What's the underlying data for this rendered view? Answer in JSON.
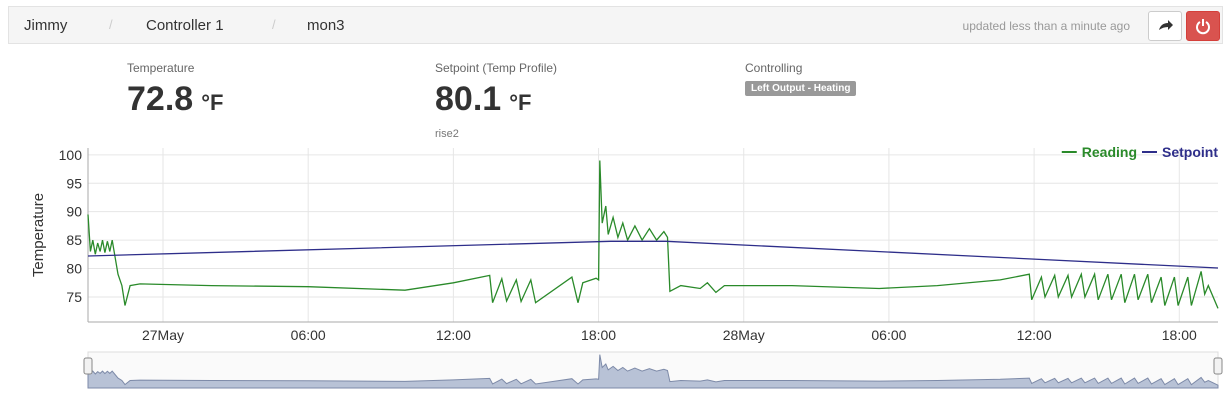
{
  "header": {
    "crumbs": [
      "Jimmy",
      "Controller 1",
      "mon3"
    ],
    "status": "updated less than a minute ago"
  },
  "stats": [
    {
      "label": "Temperature",
      "value": "72.8",
      "unit": "°F"
    },
    {
      "label": "Setpoint (Temp Profile)",
      "value": "80.1",
      "unit": "°F",
      "note": "rise2"
    },
    {
      "label": "Controlling",
      "badge": "Left Output - Heating"
    }
  ],
  "chart_data": {
    "type": "line",
    "ylabel": "Temperature",
    "xlim": [
      -3.1,
      43.6
    ],
    "ylim": [
      70.6,
      101.2
    ],
    "xticks": [
      {
        "value": 0,
        "label": "27May"
      },
      {
        "value": 6,
        "label": "06:00"
      },
      {
        "value": 12,
        "label": "12:00"
      },
      {
        "value": 18,
        "label": "18:00"
      },
      {
        "value": 24,
        "label": "28May"
      },
      {
        "value": 30,
        "label": "06:00"
      },
      {
        "value": 36,
        "label": "12:00"
      },
      {
        "value": 42,
        "label": "18:00"
      }
    ],
    "yticks": [
      75,
      80,
      85,
      90,
      95,
      100
    ],
    "grid": true,
    "legend": "top-right",
    "series": [
      {
        "name": "Reading",
        "color": "#2a8a2a",
        "x": [
          -3.1,
          -3.0,
          -2.9,
          -2.8,
          -2.7,
          -2.6,
          -2.5,
          -2.4,
          -2.3,
          -2.2,
          -2.1,
          -2.0,
          -1.86,
          -1.7,
          -1.57,
          -1.36,
          -0.95,
          2,
          6,
          10,
          12,
          13.5,
          13.62,
          14.0,
          14.2,
          14.6,
          14.8,
          15.2,
          15.4,
          16.9,
          17.15,
          17.35,
          17.9,
          18.0,
          18.05,
          18.15,
          18.3,
          18.4,
          18.6,
          18.8,
          19.0,
          19.2,
          19.5,
          19.8,
          20.1,
          20.4,
          20.7,
          20.85,
          20.95,
          21.4,
          22.2,
          22.5,
          22.85,
          23.2,
          26,
          29.6,
          32,
          34.6,
          35.8,
          35.9,
          36.3,
          36.45,
          36.85,
          37.0,
          37.4,
          37.55,
          37.95,
          38.1,
          38.5,
          38.65,
          39.05,
          39.2,
          39.6,
          39.75,
          40.15,
          40.3,
          40.7,
          40.85,
          41.25,
          41.4,
          41.8,
          41.95,
          42.35,
          42.5,
          42.9,
          43.05,
          43.2,
          43.6
        ],
        "values": [
          89.5,
          83,
          85,
          82.5,
          84.5,
          83,
          85,
          82.8,
          84.8,
          83,
          85,
          82.5,
          79,
          77,
          73.5,
          77,
          77.3,
          77,
          76.8,
          76.2,
          77.5,
          78.8,
          74,
          78.2,
          74.3,
          78,
          74.2,
          78,
          74,
          78.5,
          74,
          77.5,
          78.3,
          78,
          99,
          88,
          91,
          86,
          89,
          85.5,
          88,
          85,
          87.5,
          85,
          87,
          85,
          86.5,
          85.5,
          76,
          77,
          76.5,
          77.5,
          75.8,
          77,
          77,
          76.5,
          77,
          78,
          79,
          74.5,
          78.5,
          75,
          78.8,
          75,
          78.8,
          75,
          79,
          75,
          79,
          74.5,
          79,
          74.5,
          79,
          74,
          79,
          74.5,
          79,
          74,
          78.5,
          73.5,
          78.5,
          73.5,
          78.5,
          73.5,
          79.5,
          75.5,
          77,
          73
        ]
      },
      {
        "name": "Setpoint",
        "color": "#2e2e8a",
        "x": [
          -3.1,
          18.5,
          20.8,
          43.6
        ],
        "values": [
          82.2,
          84.8,
          84.8,
          80.1
        ]
      }
    ]
  }
}
